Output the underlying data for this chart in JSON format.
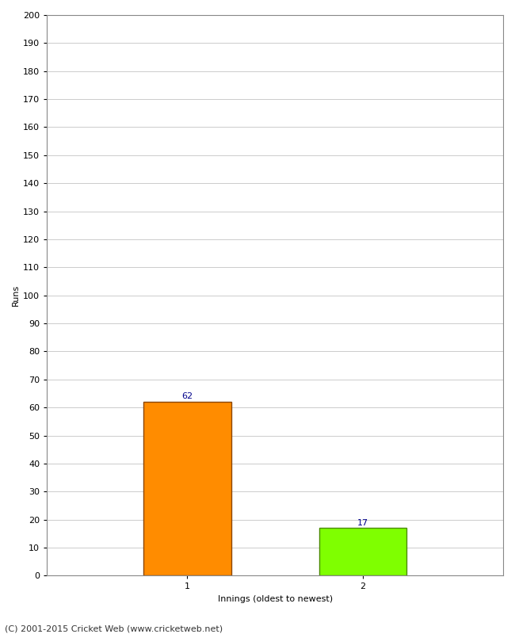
{
  "categories": [
    "1",
    "2"
  ],
  "values": [
    62,
    17
  ],
  "bar_colors": [
    "#FF8C00",
    "#7FFF00"
  ],
  "bar_edge_colors": [
    "#8B4500",
    "#4B8B00"
  ],
  "xlabel": "Innings (oldest to newest)",
  "ylabel": "Runs",
  "ylim": [
    0,
    200
  ],
  "yticks": [
    0,
    10,
    20,
    30,
    40,
    50,
    60,
    70,
    80,
    90,
    100,
    110,
    120,
    130,
    140,
    150,
    160,
    170,
    180,
    190,
    200
  ],
  "background_color": "#ffffff",
  "footer": "(C) 2001-2015 Cricket Web (www.cricketweb.net)",
  "bar_label_color": "#00008B",
  "bar_label_fontsize": 8,
  "ylabel_fontsize": 8,
  "xlabel_fontsize": 8,
  "tick_fontsize": 8,
  "footer_fontsize": 8,
  "grid_color": "#cccccc",
  "spine_color": "#888888",
  "bar_width": 0.5
}
